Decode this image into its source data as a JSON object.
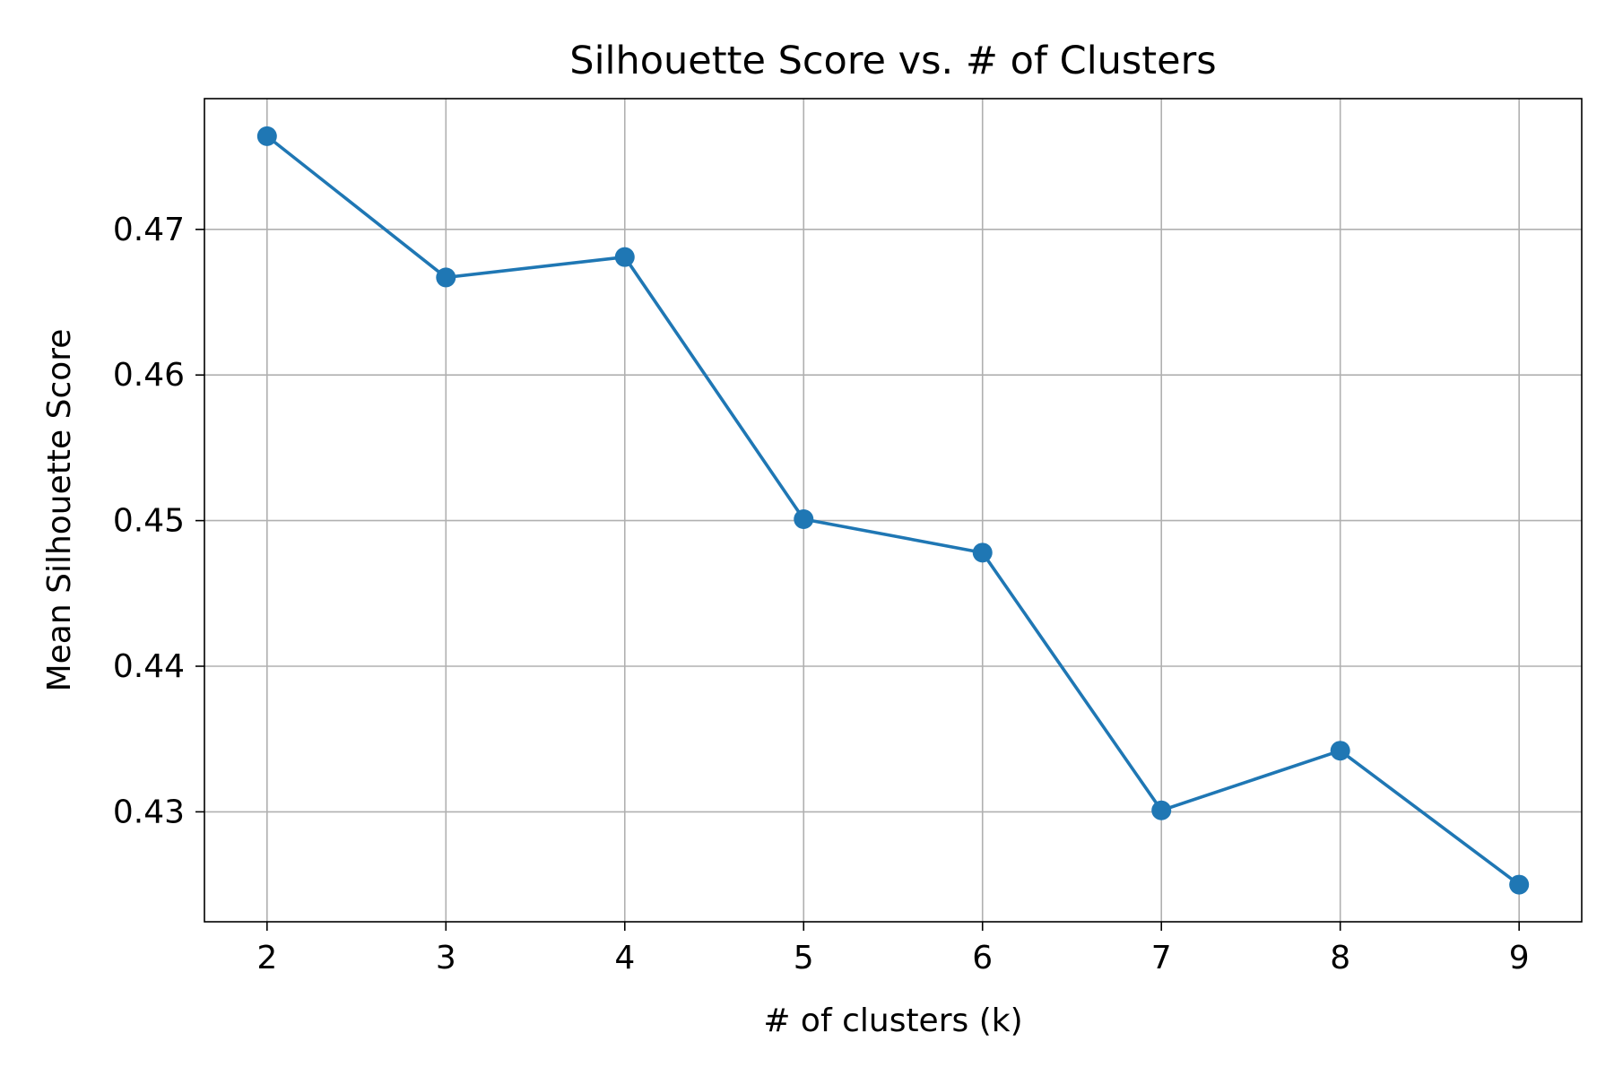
{
  "chart_data": {
    "type": "line",
    "title": "Silhouette Score vs. # of Clusters",
    "xlabel": "# of clusters (k)",
    "ylabel": "Mean Silhouette Score",
    "x": [
      2,
      3,
      4,
      5,
      6,
      7,
      8,
      9
    ],
    "series": [
      {
        "name": "Mean Silhouette Score",
        "color": "#1f77b4",
        "marker": "circle",
        "values": [
          0.4764,
          0.4667,
          0.4681,
          0.4501,
          0.4478,
          0.4301,
          0.4342,
          0.425
        ]
      }
    ],
    "xlim": [
      1.65,
      9.35
    ],
    "ylim": [
      0.42245,
      0.47898
    ],
    "xticks": [
      2,
      3,
      4,
      5,
      6,
      7,
      8,
      9
    ],
    "xtick_labels": [
      "2",
      "3",
      "4",
      "5",
      "6",
      "7",
      "8",
      "9"
    ],
    "yticks": [
      0.43,
      0.44,
      0.45,
      0.46,
      0.47
    ],
    "ytick_labels": [
      "0.43",
      "0.44",
      "0.45",
      "0.46",
      "0.47"
    ],
    "grid": true,
    "grid_color": "#b0b0b0",
    "axis_color": "#000000"
  }
}
